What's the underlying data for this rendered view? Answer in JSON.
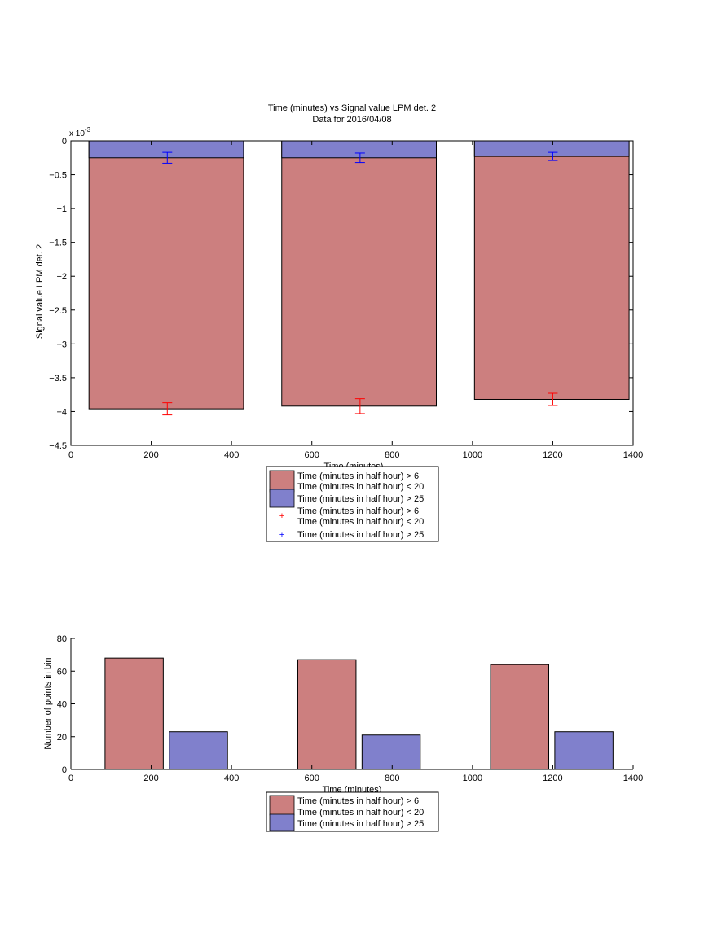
{
  "chart_data": [
    {
      "type": "bar",
      "title": "Time (minutes) vs Signal value LPM det. 2",
      "subtitle": "Data for 2016/04/08",
      "xlabel": "Time (minutes)",
      "ylabel": "Signal value LPM det. 2",
      "y_exponent_label": "x 10",
      "y_exponent_power": "-3",
      "xlim": [
        0,
        1400
      ],
      "ylim": [
        -4.5,
        0
      ],
      "x_ticks": [
        0,
        200,
        400,
        600,
        800,
        1000,
        1200,
        1400
      ],
      "x_tick_labels": [
        "0",
        "200",
        "400",
        "600",
        "800",
        "1000",
        "1200",
        "1400"
      ],
      "y_ticks": [
        0,
        -0.5,
        -1,
        -1.5,
        -2,
        -2.5,
        -3,
        -3.5,
        -4,
        -4.5
      ],
      "y_tick_labels": [
        "0",
        "−0.5",
        "−1",
        "−1.5",
        "−2",
        "−2.5",
        "−3",
        "−3.5",
        "−4",
        "−4.5"
      ],
      "grid": false,
      "legend_position": "bottom-center",
      "bar_ranges": [
        [
          45,
          430
        ],
        [
          525,
          910
        ],
        [
          1005,
          1390
        ]
      ],
      "series": [
        {
          "name": "Time (minutes in half hour) > 6\nTime (minutes in half hour) < 20",
          "color": "#cc7f7f",
          "values": [
            -3.96,
            -3.92,
            -3.82
          ]
        },
        {
          "name": "Time (minutes in half hour) > 25",
          "color": "#8080cc",
          "values": [
            -0.25,
            -0.25,
            -0.23
          ]
        }
      ],
      "errorbars": [
        {
          "name": "Time (minutes in half hour) > 6\nTime (minutes in half hour) < 20",
          "color": "#ff0000",
          "x": [
            240,
            720,
            1200
          ],
          "y": [
            -3.96,
            -3.92,
            -3.82
          ],
          "err": [
            0.09,
            0.11,
            0.09
          ]
        },
        {
          "name": "Time (minutes in half hour) > 25",
          "color": "#0000ff",
          "x": [
            240,
            720,
            1200
          ],
          "y": [
            -0.25,
            -0.25,
            -0.23
          ],
          "err": [
            0.08,
            0.07,
            0.06
          ]
        }
      ],
      "legend": [
        {
          "kind": "patch",
          "color": "#cc7f7f",
          "lines": [
            "Time (minutes in half hour) > 6",
            "Time (minutes in half hour) < 20"
          ]
        },
        {
          "kind": "patch",
          "color": "#8080cc",
          "lines": [
            "Time (minutes in half hour) > 25"
          ]
        },
        {
          "kind": "marker",
          "color": "#ff0000",
          "lines": [
            "Time (minutes in half hour) > 6",
            "Time (minutes in half hour) < 20"
          ]
        },
        {
          "kind": "marker",
          "color": "#0000ff",
          "lines": [
            "Time (minutes in half hour) > 25"
          ]
        }
      ]
    },
    {
      "type": "bar",
      "title": "",
      "xlabel": "Time (minutes)",
      "ylabel": "Number of points in bin",
      "xlim": [
        0,
        1400
      ],
      "ylim": [
        0,
        80
      ],
      "x_ticks": [
        0,
        200,
        400,
        600,
        800,
        1000,
        1200,
        1400
      ],
      "x_tick_labels": [
        "0",
        "200",
        "400",
        "600",
        "800",
        "1000",
        "1200",
        "1400"
      ],
      "y_ticks": [
        0,
        20,
        40,
        60,
        80
      ],
      "y_tick_labels": [
        "0",
        "20",
        "40",
        "60",
        "80"
      ],
      "grid": false,
      "legend_position": "bottom-center",
      "bars": [
        {
          "series": 0,
          "x0": 85,
          "x1": 230,
          "value": 68
        },
        {
          "series": 1,
          "x0": 245,
          "x1": 390,
          "value": 23
        },
        {
          "series": 0,
          "x0": 565,
          "x1": 710,
          "value": 67
        },
        {
          "series": 1,
          "x0": 725,
          "x1": 870,
          "value": 21
        },
        {
          "series": 0,
          "x0": 1045,
          "x1": 1190,
          "value": 64
        },
        {
          "series": 1,
          "x0": 1205,
          "x1": 1350,
          "value": 23
        }
      ],
      "series": [
        {
          "name": "Time (minutes in half hour) > 6\nTime (minutes in half hour) < 20",
          "color": "#cc7f7f",
          "values": [
            68,
            67,
            64
          ]
        },
        {
          "name": "Time (minutes in half hour) > 25",
          "color": "#8080cc",
          "values": [
            23,
            21,
            23
          ]
        }
      ],
      "legend": [
        {
          "kind": "patch",
          "color": "#cc7f7f",
          "lines": [
            "Time (minutes in half hour) > 6",
            "Time (minutes in half hour) < 20"
          ]
        },
        {
          "kind": "patch",
          "color": "#8080cc",
          "lines": [
            "Time (minutes in half hour) > 25"
          ]
        }
      ]
    }
  ]
}
